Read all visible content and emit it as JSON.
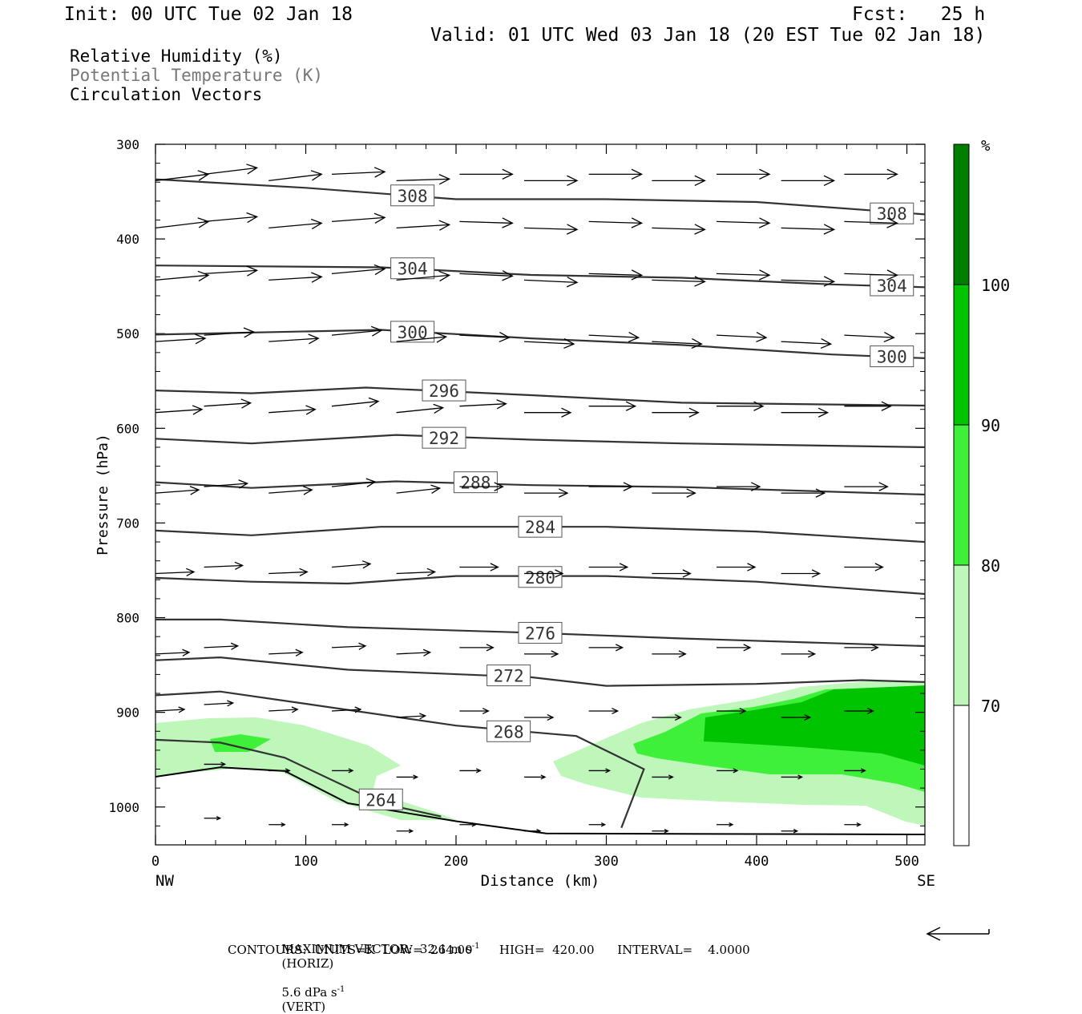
{
  "header": {
    "init": "Init: 00 UTC Tue 02 Jan 18",
    "fcst": "Fcst:   25 h",
    "valid": "Valid: 01 UTC Wed 03 Jan 18 (20 EST Tue 02 Jan 18)"
  },
  "fields": [
    "Relative Humidity (%)",
    "Potential Temperature (K)",
    "Circulation Vectors"
  ],
  "footer": {
    "line1_a": "MAXIMUM VECTOR:  32.1 m s",
    "line1_b": "(HORIZ)",
    "line1_c": "5.6 dPa s",
    "line1_d": "(VERT)",
    "exp": "-1",
    "line2": "CONTOURS:  UNITS=K  LOW=  264.00       HIGH=  420.00      INTERVAL=    4.0000"
  },
  "colors": {
    "rh70": "#bff7bb",
    "rh80": "#3ef03a",
    "rh90": "#00c400",
    "rh100": "#007e00",
    "contour": "#333333"
  },
  "chart_data": {
    "type": "cross-section",
    "xlabel": "Distance (km)",
    "ylabel": "Pressure (hPa)",
    "xlim": [
      0,
      512
    ],
    "ylim": [
      1040,
      300
    ],
    "x_ticks": [
      0,
      100,
      200,
      300,
      400,
      500
    ],
    "y_ticks": [
      300,
      400,
      500,
      600,
      700,
      800,
      900,
      1000
    ],
    "x_end_labels": [
      "NW",
      "SE"
    ],
    "colorbar": {
      "unit": "%",
      "levels": [
        70,
        80,
        90,
        100
      ],
      "colors": [
        "#bff7bb",
        "#3ef03a",
        "#00c400",
        "#007e00"
      ]
    },
    "theta_contours": [
      {
        "value": 308,
        "label_positions": [
          [
            171,
            354
          ],
          [
            490,
            373
          ]
        ],
        "points": [
          [
            0,
            337
          ],
          [
            100,
            346
          ],
          [
            200,
            358
          ],
          [
            300,
            358
          ],
          [
            400,
            361
          ],
          [
            512,
            374
          ]
        ]
      },
      {
        "value": 304,
        "label_positions": [
          [
            171,
            431
          ],
          [
            490,
            449
          ]
        ],
        "points": [
          [
            0,
            428
          ],
          [
            150,
            430
          ],
          [
            250,
            438
          ],
          [
            350,
            441
          ],
          [
            450,
            448
          ],
          [
            512,
            451
          ]
        ]
      },
      {
        "value": 300,
        "label_positions": [
          [
            171,
            498
          ],
          [
            490,
            524
          ]
        ],
        "points": [
          [
            0,
            501
          ],
          [
            150,
            496
          ],
          [
            250,
            505
          ],
          [
            350,
            512
          ],
          [
            450,
            522
          ],
          [
            512,
            526
          ]
        ]
      },
      {
        "value": 296,
        "label_positions": [
          [
            192,
            560
          ]
        ],
        "points": [
          [
            0,
            560
          ],
          [
            64,
            563
          ],
          [
            140,
            557
          ],
          [
            250,
            565
          ],
          [
            350,
            573
          ],
          [
            512,
            576
          ]
        ]
      },
      {
        "value": 292,
        "label_positions": [
          [
            192,
            610
          ]
        ],
        "points": [
          [
            0,
            611
          ],
          [
            64,
            616
          ],
          [
            160,
            607
          ],
          [
            250,
            612
          ],
          [
            350,
            616
          ],
          [
            512,
            620
          ]
        ]
      },
      {
        "value": 288,
        "label_positions": [
          [
            213,
            657
          ]
        ],
        "points": [
          [
            0,
            657
          ],
          [
            64,
            663
          ],
          [
            160,
            656
          ],
          [
            250,
            660
          ],
          [
            350,
            662
          ],
          [
            512,
            670
          ]
        ]
      },
      {
        "value": 284,
        "label_positions": [
          [
            256,
            704
          ]
        ],
        "points": [
          [
            0,
            708
          ],
          [
            64,
            713
          ],
          [
            150,
            704
          ],
          [
            300,
            704
          ],
          [
            400,
            709
          ],
          [
            512,
            720
          ]
        ]
      },
      {
        "value": 280,
        "label_positions": [
          [
            256,
            757
          ]
        ],
        "points": [
          [
            0,
            758
          ],
          [
            64,
            762
          ],
          [
            128,
            764
          ],
          [
            200,
            756
          ],
          [
            300,
            756
          ],
          [
            400,
            762
          ],
          [
            512,
            775
          ]
        ]
      },
      {
        "value": 276,
        "label_positions": [
          [
            256,
            816
          ]
        ],
        "points": [
          [
            0,
            802
          ],
          [
            43,
            802
          ],
          [
            128,
            810
          ],
          [
            250,
            816
          ],
          [
            350,
            822
          ],
          [
            512,
            830
          ]
        ]
      },
      {
        "value": 272,
        "label_positions": [
          [
            235,
            861
          ]
        ],
        "points": [
          [
            0,
            845
          ],
          [
            43,
            842
          ],
          [
            128,
            855
          ],
          [
            250,
            863
          ],
          [
            300,
            872
          ],
          [
            400,
            870
          ],
          [
            470,
            866
          ],
          [
            512,
            868
          ]
        ]
      },
      {
        "value": 268,
        "label_positions": [
          [
            235,
            920
          ]
        ],
        "points": [
          [
            0,
            882
          ],
          [
            43,
            878
          ],
          [
            100,
            891
          ],
          [
            200,
            914
          ],
          [
            280,
            925
          ],
          [
            325,
            960
          ],
          [
            310,
            1022
          ]
        ]
      },
      {
        "value": 264,
        "label_positions": [
          [
            150,
            992
          ]
        ],
        "points": [
          [
            0,
            929
          ],
          [
            43,
            932
          ],
          [
            86,
            948
          ],
          [
            150,
            996
          ],
          [
            190,
            1010
          ]
        ]
      }
    ],
    "surface_line": [
      [
        0,
        968
      ],
      [
        43,
        958
      ],
      [
        86,
        962
      ],
      [
        128,
        996
      ],
      [
        200,
        1015
      ],
      [
        260,
        1028
      ],
      [
        512,
        1029
      ]
    ],
    "max_vector": {
      "horiz_m_s": 32.1,
      "vert_dPa_s": 5.6
    }
  }
}
